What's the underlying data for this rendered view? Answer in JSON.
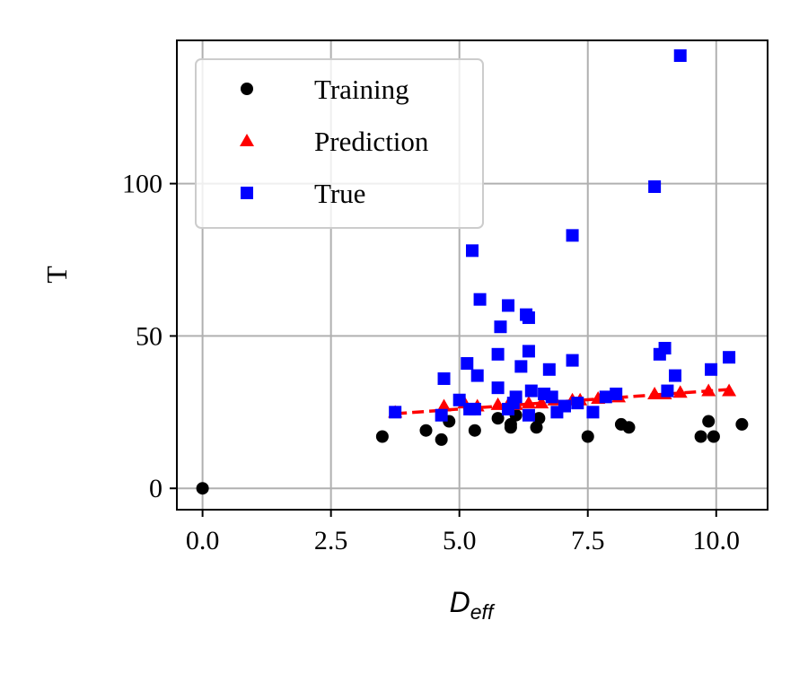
{
  "chart_data": {
    "type": "scatter",
    "xlabel_main": "D",
    "xlabel_sub": "eff",
    "ylabel": "T",
    "xlim": [
      -0.5,
      11.0
    ],
    "ylim": [
      -7,
      147
    ],
    "xticks": [
      0.0,
      2.5,
      5.0,
      7.5,
      10.0
    ],
    "xtick_labels": [
      "0.0",
      "2.5",
      "5.0",
      "7.5",
      "10.0"
    ],
    "yticks": [
      0,
      50,
      100
    ],
    "ytick_labels": [
      "0",
      "50",
      "100"
    ],
    "grid": true,
    "legend_position": "top-left",
    "series": [
      {
        "name": "Training",
        "marker": "circle",
        "color": "#000000",
        "points": [
          [
            0.0,
            0.0
          ],
          [
            3.5,
            17
          ],
          [
            4.35,
            19
          ],
          [
            4.65,
            16
          ],
          [
            4.8,
            22
          ],
          [
            5.3,
            19
          ],
          [
            5.75,
            23
          ],
          [
            6.0,
            20
          ],
          [
            6.0,
            21
          ],
          [
            6.1,
            24
          ],
          [
            6.5,
            20
          ],
          [
            6.55,
            23
          ],
          [
            7.5,
            17
          ],
          [
            8.15,
            21
          ],
          [
            8.3,
            20
          ],
          [
            9.7,
            17
          ],
          [
            9.85,
            22
          ],
          [
            9.95,
            17
          ],
          [
            10.5,
            21
          ]
        ]
      },
      {
        "name": "Prediction",
        "marker": "triangle",
        "color": "#ff0000",
        "points": [
          [
            3.75,
            25
          ],
          [
            4.7,
            27
          ],
          [
            5.1,
            28
          ],
          [
            5.35,
            27
          ],
          [
            5.75,
            27.5
          ],
          [
            5.95,
            27.5
          ],
          [
            6.1,
            27.5
          ],
          [
            6.35,
            28
          ],
          [
            6.6,
            28
          ],
          [
            6.85,
            29
          ],
          [
            7.2,
            29
          ],
          [
            7.35,
            29
          ],
          [
            7.7,
            29.5
          ],
          [
            8.1,
            30
          ],
          [
            8.8,
            31
          ],
          [
            9.0,
            31
          ],
          [
            9.3,
            31.5
          ],
          [
            9.85,
            32
          ],
          [
            10.25,
            32
          ]
        ]
      },
      {
        "name": "True",
        "marker": "square",
        "color": "#0000ff",
        "points": [
          [
            3.75,
            25
          ],
          [
            4.65,
            24
          ],
          [
            4.7,
            36
          ],
          [
            5.0,
            29
          ],
          [
            5.15,
            41
          ],
          [
            5.2,
            26
          ],
          [
            5.25,
            78
          ],
          [
            5.3,
            26
          ],
          [
            5.35,
            37
          ],
          [
            5.4,
            62
          ],
          [
            5.75,
            33
          ],
          [
            5.75,
            44
          ],
          [
            5.8,
            53
          ],
          [
            5.95,
            60
          ],
          [
            5.95,
            26
          ],
          [
            6.05,
            28
          ],
          [
            6.1,
            30
          ],
          [
            6.2,
            40
          ],
          [
            6.3,
            57
          ],
          [
            6.35,
            45
          ],
          [
            6.35,
            56
          ],
          [
            6.35,
            24
          ],
          [
            6.4,
            32
          ],
          [
            6.65,
            31
          ],
          [
            6.75,
            39
          ],
          [
            6.8,
            30
          ],
          [
            6.9,
            25
          ],
          [
            7.05,
            27
          ],
          [
            7.2,
            42
          ],
          [
            7.2,
            83
          ],
          [
            7.3,
            28
          ],
          [
            7.6,
            25
          ],
          [
            7.85,
            30
          ],
          [
            8.05,
            31
          ],
          [
            8.8,
            99
          ],
          [
            8.9,
            44
          ],
          [
            9.0,
            46
          ],
          [
            9.05,
            32
          ],
          [
            9.2,
            37
          ],
          [
            9.3,
            142
          ],
          [
            9.9,
            39
          ],
          [
            10.25,
            43
          ]
        ]
      }
    ],
    "trend_line": {
      "style": "dashed",
      "color": "#ff0000",
      "x": [
        3.75,
        10.3
      ],
      "y": [
        24.5,
        32.5
      ]
    }
  }
}
